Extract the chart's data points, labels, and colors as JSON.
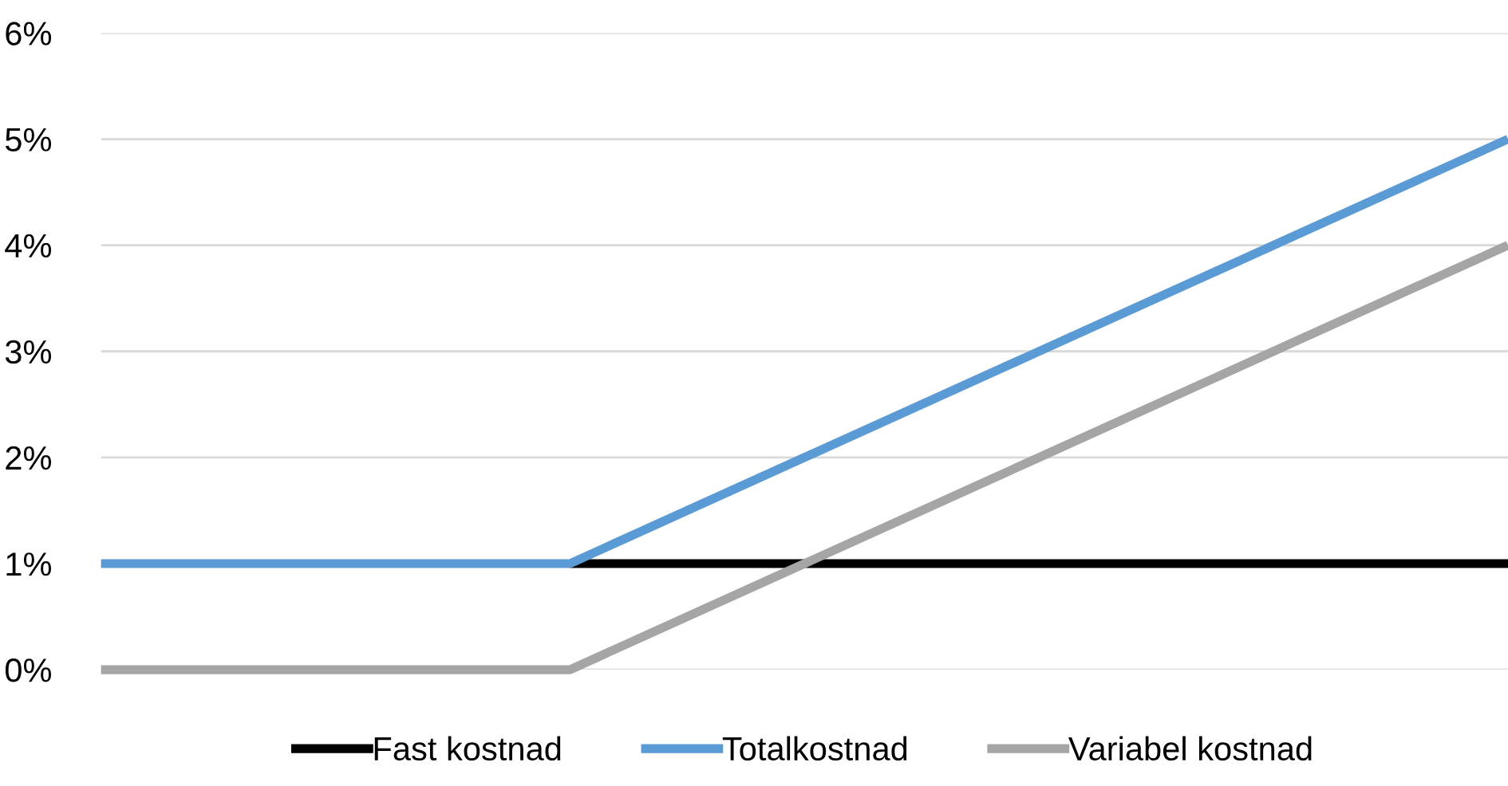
{
  "chart_data": {
    "type": "line",
    "categories": [
      null,
      null,
      null,
      null
    ],
    "series": [
      {
        "name": "Fast kostnad",
        "color": "#000000",
        "values": [
          null,
          1,
          1,
          1
        ]
      },
      {
        "name": "Totalkostnad",
        "color": "#5b9bd5",
        "values": [
          1,
          1,
          3,
          5
        ]
      },
      {
        "name": "Variabel kostnad",
        "color": "#a5a5a5",
        "values": [
          0,
          0,
          2,
          4
        ]
      }
    ],
    "ylim": [
      0,
      6
    ],
    "yticks": [
      {
        "value": 0,
        "label": "0%"
      },
      {
        "value": 1,
        "label": "1%"
      },
      {
        "value": 2,
        "label": "2%"
      },
      {
        "value": 3,
        "label": "3%"
      },
      {
        "value": 4,
        "label": "4%"
      },
      {
        "value": 5,
        "label": "5%"
      },
      {
        "value": 6,
        "label": "6%"
      }
    ],
    "grid": "y",
    "legend": "bottom",
    "marker": "none",
    "line_style": "solid"
  }
}
